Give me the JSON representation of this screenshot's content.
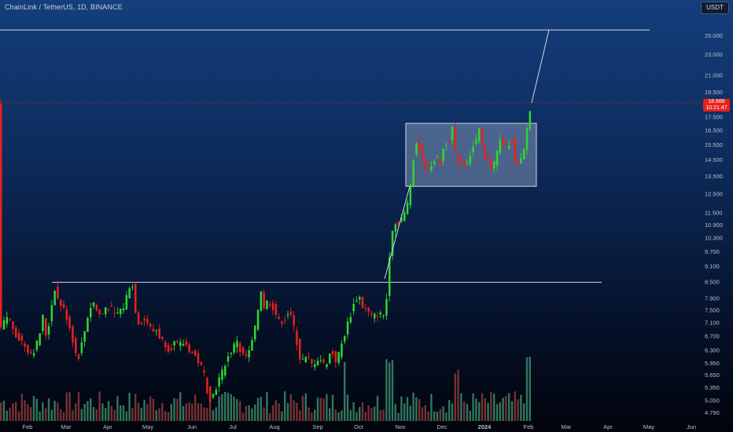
{
  "header": {
    "title": "ChainLink / TetherUS, 1D, BINANCE",
    "currency": "USDT"
  },
  "last_price": {
    "price": "18.688",
    "countdown": "10:21:47"
  },
  "colors": {
    "up": "#2fd82f",
    "down": "#e8221b",
    "volume_up": "#3a8a6a",
    "volume_down": "#8a3a3a",
    "level_line": "#cfd6e0",
    "box_fill": "#9fb3cf",
    "price_line": "#e8221b"
  },
  "chart_data": {
    "type": "candlestick",
    "series": [
      {
        "name": "",
        "note": "daily LINK/USDT candles, Feb 2023 – Feb 2024"
      }
    ],
    "price_axis": [
      "25.000",
      "23.000",
      "21.000",
      "19.500",
      "17.500",
      "16.500",
      "15.500",
      "14.500",
      "13.500",
      "12.500",
      "11.500",
      "10.900",
      "10.300",
      "9.700",
      "9.100",
      "8.500",
      "7.900",
      "7.500",
      "7.100",
      "6.700",
      "6.300",
      "5.950",
      "5.650",
      "5.350",
      "5.050",
      "4.790"
    ],
    "time_axis": [
      "Feb",
      "Mar",
      "Apr",
      "May",
      "Jun",
      "Jul",
      "Aug",
      "Sep",
      "Oct",
      "Nov",
      "Dec",
      "2024",
      "Feb",
      "Mar",
      "Apr",
      "May",
      "Jun"
    ],
    "path": [
      [
        0,
        6.9
      ],
      [
        8,
        7.3
      ],
      [
        14,
        7.0
      ],
      [
        20,
        6.7
      ],
      [
        28,
        6.5
      ],
      [
        34,
        6.3
      ],
      [
        40,
        6.2
      ],
      [
        48,
        6.6
      ],
      [
        53,
        7.3
      ],
      [
        58,
        6.6
      ],
      [
        63,
        7.4
      ],
      [
        68,
        8.3
      ],
      [
        73,
        7.8
      ],
      [
        80,
        7.5
      ],
      [
        86,
        7.1
      ],
      [
        91,
        6.6
      ],
      [
        97,
        6.0
      ],
      [
        101,
        6.3
      ],
      [
        106,
        6.8
      ],
      [
        111,
        7.4
      ],
      [
        117,
        7.8
      ],
      [
        123,
        7.4
      ],
      [
        128,
        7.3
      ],
      [
        133,
        7.6
      ],
      [
        139,
        7.6
      ],
      [
        145,
        7.3
      ],
      [
        151,
        7.5
      ],
      [
        156,
        7.6
      ],
      [
        161,
        8.1
      ],
      [
        166,
        8.6
      ],
      [
        170,
        7.6
      ],
      [
        175,
        7.1
      ],
      [
        181,
        7.2
      ],
      [
        187,
        7.1
      ],
      [
        192,
        6.8
      ],
      [
        197,
        6.9
      ],
      [
        203,
        6.6
      ],
      [
        208,
        6.5
      ],
      [
        214,
        6.3
      ],
      [
        220,
        6.5
      ],
      [
        226,
        6.4
      ],
      [
        231,
        6.5
      ],
      [
        237,
        6.4
      ],
      [
        243,
        6.2
      ],
      [
        248,
        6.1
      ],
      [
        253,
        5.9
      ],
      [
        258,
        5.7
      ],
      [
        262,
        5.3
      ],
      [
        266,
        5.1
      ],
      [
        271,
        5.2
      ],
      [
        276,
        5.5
      ],
      [
        281,
        5.7
      ],
      [
        286,
        6.0
      ],
      [
        291,
        6.2
      ],
      [
        296,
        6.4
      ],
      [
        300,
        6.6
      ],
      [
        305,
        6.2
      ],
      [
        310,
        6.1
      ],
      [
        315,
        6.2
      ],
      [
        320,
        6.6
      ],
      [
        325,
        7.1
      ],
      [
        330,
        8.3
      ],
      [
        334,
        7.6
      ],
      [
        339,
        7.8
      ],
      [
        344,
        7.7
      ],
      [
        349,
        7.4
      ],
      [
        354,
        7.1
      ],
      [
        360,
        7.2
      ],
      [
        365,
        7.4
      ],
      [
        370,
        7.2
      ],
      [
        375,
        6.7
      ],
      [
        379,
        6.1
      ],
      [
        385,
        6.0
      ],
      [
        390,
        6.1
      ],
      [
        395,
        5.9
      ],
      [
        400,
        6.0
      ],
      [
        405,
        6.1
      ],
      [
        410,
        5.9
      ],
      [
        415,
        6.0
      ],
      [
        420,
        6.3
      ],
      [
        425,
        6.0
      ],
      [
        430,
        6.2
      ],
      [
        435,
        6.6
      ],
      [
        440,
        7.0
      ],
      [
        445,
        7.4
      ],
      [
        450,
        7.8
      ],
      [
        455,
        8.0
      ],
      [
        460,
        7.6
      ],
      [
        465,
        7.5
      ],
      [
        470,
        7.3
      ],
      [
        475,
        7.3
      ],
      [
        480,
        7.4
      ],
      [
        485,
        7.3
      ],
      [
        489,
        7.4
      ],
      [
        492,
        8.6
      ],
      [
        496,
        10.6
      ],
      [
        500,
        10.9
      ],
      [
        505,
        11.0
      ],
      [
        510,
        11.3
      ],
      [
        515,
        11.5
      ],
      [
        520,
        12.8
      ],
      [
        525,
        14.9
      ],
      [
        530,
        16.0
      ],
      [
        534,
        14.5
      ],
      [
        539,
        14.1
      ],
      [
        544,
        13.9
      ],
      [
        549,
        14.5
      ],
      [
        554,
        14.6
      ],
      [
        559,
        14.3
      ],
      [
        564,
        15.6
      ],
      [
        569,
        15.7
      ],
      [
        574,
        16.7
      ],
      [
        579,
        14.2
      ],
      [
        584,
        14.6
      ],
      [
        589,
        14.2
      ],
      [
        594,
        14.5
      ],
      [
        599,
        15.2
      ],
      [
        604,
        15.7
      ],
      [
        609,
        16.6
      ],
      [
        614,
        14.3
      ],
      [
        619,
        14.6
      ],
      [
        624,
        13.9
      ],
      [
        629,
        14.6
      ],
      [
        634,
        15.7
      ],
      [
        639,
        15.7
      ],
      [
        644,
        15.3
      ],
      [
        649,
        16.1
      ],
      [
        654,
        14.1
      ],
      [
        659,
        14.2
      ],
      [
        664,
        14.7
      ],
      [
        668,
        16.3
      ],
      [
        672,
        17.9
      ],
      [
        676,
        18.6
      ]
    ]
  },
  "annotations": {
    "resistance_top": {
      "value": 25.6
    },
    "resistance_mid": {
      "value": 8.47
    },
    "range_box": {
      "from": "Nov",
      "to": "Feb",
      "low": 12.9,
      "high": 17.0
    },
    "trend_line_1": {
      "from_value": 8.6,
      "to_value": 12.9
    },
    "trend_line_2": {
      "from_value": 18.6,
      "to_value": 25.6
    }
  }
}
